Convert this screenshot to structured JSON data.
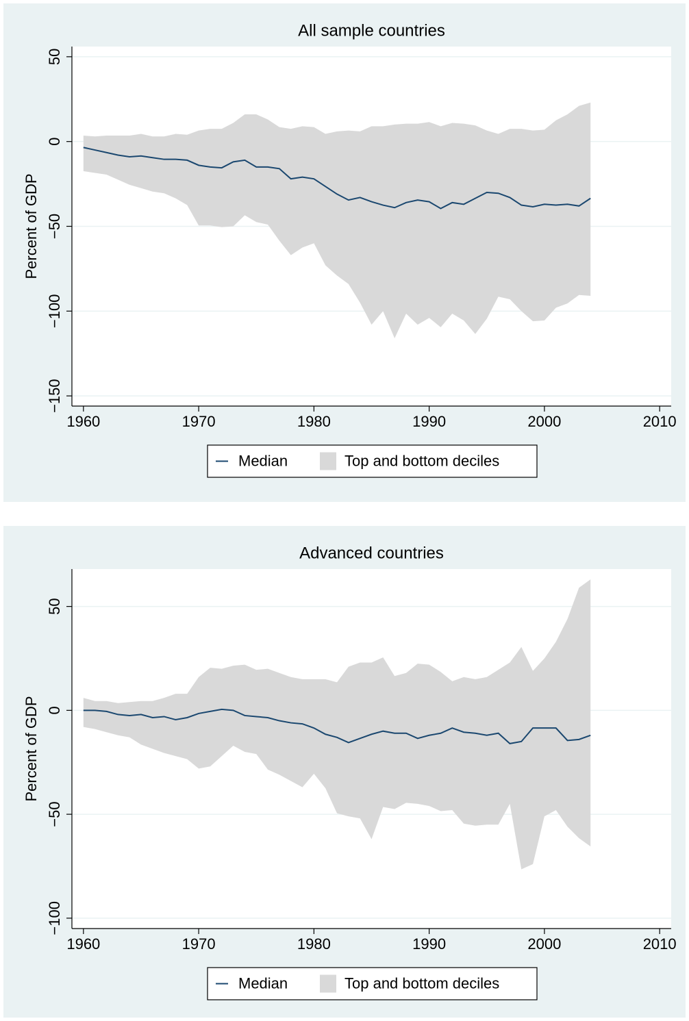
{
  "chart_data": [
    {
      "type": "line",
      "title": "All sample countries",
      "ylabel": "Percent of GDP",
      "x": [
        1960,
        1961,
        1962,
        1963,
        1964,
        1965,
        1966,
        1967,
        1968,
        1969,
        1970,
        1971,
        1972,
        1973,
        1974,
        1975,
        1976,
        1977,
        1978,
        1979,
        1980,
        1981,
        1982,
        1983,
        1984,
        1985,
        1986,
        1987,
        1988,
        1989,
        1990,
        1991,
        1992,
        1993,
        1994,
        1995,
        1996,
        1997,
        1998,
        1999,
        2000,
        2001,
        2002,
        2003,
        2004
      ],
      "series": [
        {
          "name": "Median",
          "type": "line",
          "color": "#1a476f",
          "values": [
            -3.5,
            -5,
            -6.5,
            -8,
            -9,
            -8.5,
            -9.5,
            -10.5,
            -10.5,
            -11,
            -14,
            -15,
            -15.5,
            -12,
            -11,
            -15,
            -15,
            -16,
            -22,
            -21,
            -22,
            -26.5,
            -31,
            -34.5,
            -33,
            -35.5,
            -37.5,
            -39,
            -36,
            -34.5,
            -35.5,
            -39.5,
            -36,
            -37,
            -33.5,
            -30,
            -30.5,
            -33,
            -37.5,
            -38.5,
            -37,
            -37.5,
            -37,
            -38,
            -33.5
          ]
        },
        {
          "name": "Top and bottom deciles",
          "type": "range",
          "color": "#d9d9d9",
          "values": [
            3.5,
            3,
            3.5,
            3.5,
            3.5,
            4.5,
            3,
            3,
            4.5,
            4,
            6.5,
            7.5,
            7.5,
            11,
            16,
            16,
            13,
            8.5,
            7.5,
            9,
            8.5,
            4.5,
            6,
            6.5,
            6,
            9,
            9,
            10,
            10.5,
            10.5,
            11.5,
            9,
            11,
            10.5,
            9.5,
            6.5,
            4.5,
            7.5,
            7.5,
            6.5,
            7,
            12.5,
            16,
            21,
            23
          ],
          "lower": [
            -17.5,
            -18.5,
            -19.5,
            -22.5,
            -25.5,
            -27.5,
            -29.5,
            -30.5,
            -33.5,
            -37.5,
            -49.5,
            -49.5,
            -50.5,
            -50,
            -43.5,
            -47.5,
            -49,
            -58.5,
            -67,
            -62.5,
            -60,
            -73,
            -79,
            -84,
            -95,
            -108,
            -100,
            -116,
            -101.5,
            -108,
            -104,
            -109.5,
            -101.5,
            -105.5,
            -113.5,
            -104.5,
            -91.5,
            -93,
            -100,
            -106,
            -105.5,
            -98,
            -95.5,
            -90.5,
            -91
          ]
        }
      ],
      "xlim": [
        1959,
        2011
      ],
      "xticks": [
        1960,
        1970,
        1980,
        1990,
        2000,
        2010
      ],
      "ylim": [
        -156,
        56
      ],
      "yticks": [
        {
          "value": -150,
          "label": "−150"
        },
        {
          "value": -100,
          "label": "−100"
        },
        {
          "value": -50,
          "label": "−50"
        },
        0,
        50
      ],
      "grid": true
    },
    {
      "type": "line",
      "title": "Advanced countries",
      "ylabel": "Percent of GDP",
      "x": [
        1960,
        1961,
        1962,
        1963,
        1964,
        1965,
        1966,
        1967,
        1968,
        1969,
        1970,
        1971,
        1972,
        1973,
        1974,
        1975,
        1976,
        1977,
        1978,
        1979,
        1980,
        1981,
        1982,
        1983,
        1984,
        1985,
        1986,
        1987,
        1988,
        1989,
        1990,
        1991,
        1992,
        1993,
        1994,
        1995,
        1996,
        1997,
        1998,
        1999,
        2000,
        2001,
        2002,
        2003,
        2004
      ],
      "series": [
        {
          "name": "Median",
          "type": "line",
          "color": "#1a476f",
          "values": [
            0,
            0,
            -0.5,
            -2,
            -2.5,
            -2,
            -3.5,
            -3,
            -4.5,
            -3.5,
            -1.5,
            -0.5,
            0.5,
            0,
            -2.5,
            -3,
            -3.5,
            -5,
            -6,
            -6.5,
            -8.5,
            -11.5,
            -13,
            -15.5,
            -13.5,
            -11.5,
            -10,
            -11,
            -11,
            -13.5,
            -12,
            -11,
            -8.5,
            -10.5,
            -11,
            -12,
            -11,
            -16,
            -15,
            -8.5,
            -8.5,
            -8.5,
            -14.5,
            -14,
            -12
          ]
        },
        {
          "name": "Top and bottom deciles",
          "type": "range",
          "color": "#d9d9d9",
          "values": [
            6,
            4.5,
            4.5,
            3.5,
            4,
            4.5,
            4.5,
            6,
            8,
            8,
            16,
            20.5,
            20,
            21.5,
            22,
            19.5,
            20,
            18,
            16,
            15,
            15,
            15,
            13.5,
            21,
            23,
            23,
            25.5,
            16.5,
            18,
            22.5,
            22,
            18.5,
            14,
            16,
            15,
            16,
            19.5,
            23,
            30.5,
            19,
            25,
            33,
            44,
            59,
            63
          ],
          "lower": [
            -8,
            -9,
            -10.5,
            -12,
            -13,
            -16.5,
            -18.5,
            -20.5,
            -22,
            -23.5,
            -28,
            -27,
            -22,
            -17,
            -20,
            -21,
            -28.5,
            -31,
            -34,
            -37,
            -30.5,
            -37.5,
            -49.5,
            -51,
            -52,
            -62,
            -46.5,
            -47.5,
            -44.5,
            -45,
            -46,
            -48.5,
            -48,
            -54.5,
            -55.5,
            -55,
            -55,
            -45,
            -76.5,
            -74,
            -51,
            -48,
            -56,
            -61.5,
            -65.5
          ]
        }
      ],
      "xlim": [
        1959,
        2011
      ],
      "xticks": [
        1960,
        1970,
        1980,
        1990,
        2000,
        2010
      ],
      "ylim": [
        -105,
        68
      ],
      "yticks": [
        {
          "value": -100,
          "label": "−100"
        },
        {
          "value": -50,
          "label": "−50"
        },
        0,
        50
      ],
      "grid": true
    }
  ]
}
